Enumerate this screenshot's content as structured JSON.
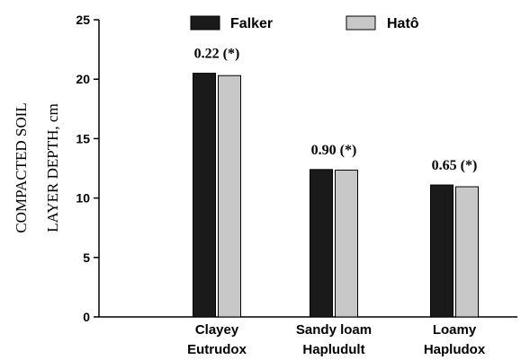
{
  "chart_data": {
    "type": "bar",
    "ylabel_lines": [
      "COMPACTED SOIL",
      "LAYER DEPTH, cm"
    ],
    "ylim": [
      0,
      25
    ],
    "yticks": [
      0,
      5,
      10,
      15,
      20,
      25
    ],
    "categories": [
      {
        "lines": [
          "Clayey",
          "Eutrudox"
        ]
      },
      {
        "lines": [
          "Sandy loam",
          "Hapludult"
        ]
      },
      {
        "lines": [
          "Loamy",
          "Hapludox"
        ]
      }
    ],
    "series": [
      {
        "name": "Falker",
        "color": "#1a1a1a",
        "values": [
          20.5,
          12.4,
          11.1
        ]
      },
      {
        "name": "Hatô",
        "color": "#c8c8c8",
        "values": [
          20.3,
          12.35,
          10.95
        ]
      }
    ],
    "annotations": [
      "0.22 (*)",
      "0.90 (*)",
      "0.65 (*)"
    ],
    "legend_position": "top"
  }
}
